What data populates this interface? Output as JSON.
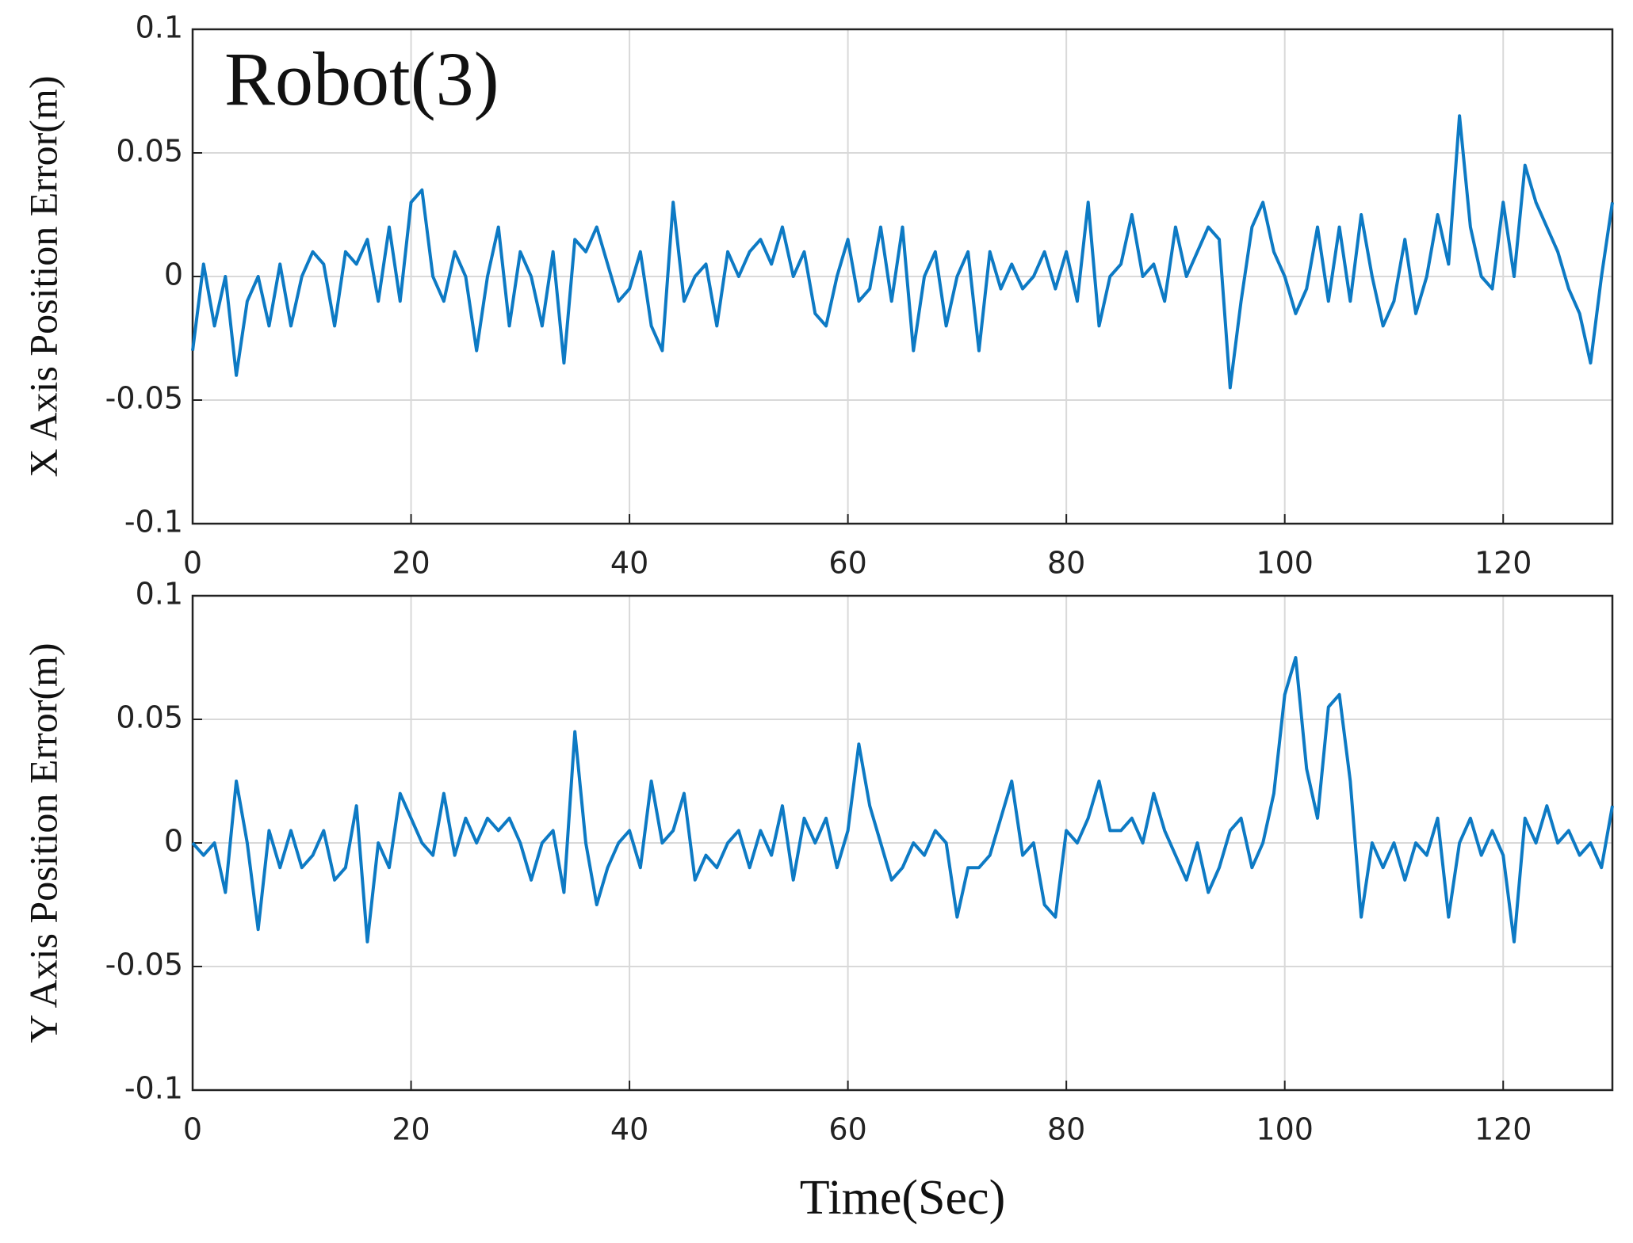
{
  "chart_data": [
    {
      "type": "line",
      "annotation": "Robot(3)",
      "ylabel": "X Axis Position Error(m)",
      "xlim": [
        0,
        130
      ],
      "xticks": [
        0,
        20,
        40,
        60,
        80,
        100,
        120
      ],
      "ylim": [
        -0.1,
        0.1
      ],
      "yticks": [
        0.1,
        0.05,
        0,
        -0.05,
        -0.1
      ],
      "grid": true,
      "x": [
        0,
        1,
        2,
        3,
        4,
        5,
        6,
        7,
        8,
        9,
        10,
        11,
        12,
        13,
        14,
        15,
        16,
        17,
        18,
        19,
        20,
        21,
        22,
        23,
        24,
        25,
        26,
        27,
        28,
        29,
        30,
        31,
        32,
        33,
        34,
        35,
        36,
        37,
        38,
        39,
        40,
        41,
        42,
        43,
        44,
        45,
        46,
        47,
        48,
        49,
        50,
        51,
        52,
        53,
        54,
        55,
        56,
        57,
        58,
        59,
        60,
        61,
        62,
        63,
        64,
        65,
        66,
        67,
        68,
        69,
        70,
        71,
        72,
        73,
        74,
        75,
        76,
        77,
        78,
        79,
        80,
        81,
        82,
        83,
        84,
        85,
        86,
        87,
        88,
        89,
        90,
        91,
        92,
        93,
        94,
        95,
        96,
        97,
        98,
        99,
        100,
        101,
        102,
        103,
        104,
        105,
        106,
        107,
        108,
        109,
        110,
        111,
        112,
        113,
        114,
        115,
        116,
        117,
        118,
        119,
        120,
        121,
        122,
        123,
        124,
        125,
        126,
        127,
        128,
        129,
        130
      ],
      "series": [
        {
          "color": "#0d7ac4",
          "values": [
            -0.03,
            0.005,
            -0.02,
            0.0,
            -0.04,
            -0.01,
            0.0,
            -0.02,
            0.005,
            -0.02,
            0.0,
            0.01,
            0.005,
            -0.02,
            0.01,
            0.005,
            0.015,
            -0.01,
            0.02,
            -0.01,
            0.03,
            0.035,
            0.0,
            -0.01,
            0.01,
            0.0,
            -0.03,
            0.0,
            0.02,
            -0.02,
            0.01,
            0.0,
            -0.02,
            0.01,
            -0.035,
            0.015,
            0.01,
            0.02,
            0.005,
            -0.01,
            -0.005,
            0.01,
            -0.02,
            -0.03,
            0.03,
            -0.01,
            0.0,
            0.005,
            -0.02,
            0.01,
            0.0,
            0.01,
            0.015,
            0.005,
            0.02,
            0.0,
            0.01,
            -0.015,
            -0.02,
            0.0,
            0.015,
            -0.01,
            -0.005,
            0.02,
            -0.01,
            0.02,
            -0.03,
            0.0,
            0.01,
            -0.02,
            0.0,
            0.01,
            -0.03,
            0.01,
            -0.005,
            0.005,
            -0.005,
            0.0,
            0.01,
            -0.005,
            0.01,
            -0.01,
            0.03,
            -0.02,
            0.0,
            0.005,
            0.025,
            0.0,
            0.005,
            -0.01,
            0.02,
            0.0,
            0.01,
            0.02,
            0.015,
            -0.045,
            -0.01,
            0.02,
            0.03,
            0.01,
            0.0,
            -0.015,
            -0.005,
            0.02,
            -0.01,
            0.02,
            -0.01,
            0.025,
            0.0,
            -0.02,
            -0.01,
            0.015,
            -0.015,
            0.0,
            0.025,
            0.005,
            0.065,
            0.02,
            0.0,
            -0.005,
            0.03,
            0.0,
            0.045,
            0.03,
            0.02,
            0.01,
            -0.005,
            -0.015,
            -0.035,
            0.0,
            0.03
          ]
        }
      ]
    },
    {
      "type": "line",
      "ylabel": "Y Axis Position Error(m)",
      "xlabel": "Time(Sec)",
      "xlim": [
        0,
        130
      ],
      "xticks": [
        0,
        20,
        40,
        60,
        80,
        100,
        120
      ],
      "ylim": [
        -0.1,
        0.1
      ],
      "yticks": [
        0.1,
        0.05,
        0,
        -0.05,
        -0.1
      ],
      "grid": true,
      "x": [
        0,
        1,
        2,
        3,
        4,
        5,
        6,
        7,
        8,
        9,
        10,
        11,
        12,
        13,
        14,
        15,
        16,
        17,
        18,
        19,
        20,
        21,
        22,
        23,
        24,
        25,
        26,
        27,
        28,
        29,
        30,
        31,
        32,
        33,
        34,
        35,
        36,
        37,
        38,
        39,
        40,
        41,
        42,
        43,
        44,
        45,
        46,
        47,
        48,
        49,
        50,
        51,
        52,
        53,
        54,
        55,
        56,
        57,
        58,
        59,
        60,
        61,
        62,
        63,
        64,
        65,
        66,
        67,
        68,
        69,
        70,
        71,
        72,
        73,
        74,
        75,
        76,
        77,
        78,
        79,
        80,
        81,
        82,
        83,
        84,
        85,
        86,
        87,
        88,
        89,
        90,
        91,
        92,
        93,
        94,
        95,
        96,
        97,
        98,
        99,
        100,
        101,
        102,
        103,
        104,
        105,
        106,
        107,
        108,
        109,
        110,
        111,
        112,
        113,
        114,
        115,
        116,
        117,
        118,
        119,
        120,
        121,
        122,
        123,
        124,
        125,
        126,
        127,
        128,
        129,
        130
      ],
      "series": [
        {
          "color": "#0d7ac4",
          "values": [
            0.0,
            -0.005,
            0.0,
            -0.02,
            0.025,
            0.0,
            -0.035,
            0.005,
            -0.01,
            0.005,
            -0.01,
            -0.005,
            0.005,
            -0.015,
            -0.01,
            0.015,
            -0.04,
            0.0,
            -0.01,
            0.02,
            0.01,
            0.0,
            -0.005,
            0.02,
            -0.005,
            0.01,
            0.0,
            0.01,
            0.005,
            0.01,
            0.0,
            -0.015,
            0.0,
            0.005,
            -0.02,
            0.045,
            0.0,
            -0.025,
            -0.01,
            0.0,
            0.005,
            -0.01,
            0.025,
            0.0,
            0.005,
            0.02,
            -0.015,
            -0.005,
            -0.01,
            0.0,
            0.005,
            -0.01,
            0.005,
            -0.005,
            0.015,
            -0.015,
            0.01,
            0.0,
            0.01,
            -0.01,
            0.005,
            0.04,
            0.015,
            0.0,
            -0.015,
            -0.01,
            0.0,
            -0.005,
            0.005,
            0.0,
            -0.03,
            -0.01,
            -0.01,
            -0.005,
            0.01,
            0.025,
            -0.005,
            0.0,
            -0.025,
            -0.03,
            0.005,
            0.0,
            0.01,
            0.025,
            0.005,
            0.005,
            0.01,
            0.0,
            0.02,
            0.005,
            -0.005,
            -0.015,
            0.0,
            -0.02,
            -0.01,
            0.005,
            0.01,
            -0.01,
            0.0,
            0.02,
            0.06,
            0.075,
            0.03,
            0.01,
            0.055,
            0.06,
            0.025,
            -0.03,
            0.0,
            -0.01,
            0.0,
            -0.015,
            0.0,
            -0.005,
            0.01,
            -0.03,
            0.0,
            0.01,
            -0.005,
            0.005,
            -0.005,
            -0.04,
            0.01,
            0.0,
            0.015,
            0.0,
            0.005,
            -0.005,
            0.0,
            -0.01,
            0.015
          ]
        }
      ]
    }
  ]
}
